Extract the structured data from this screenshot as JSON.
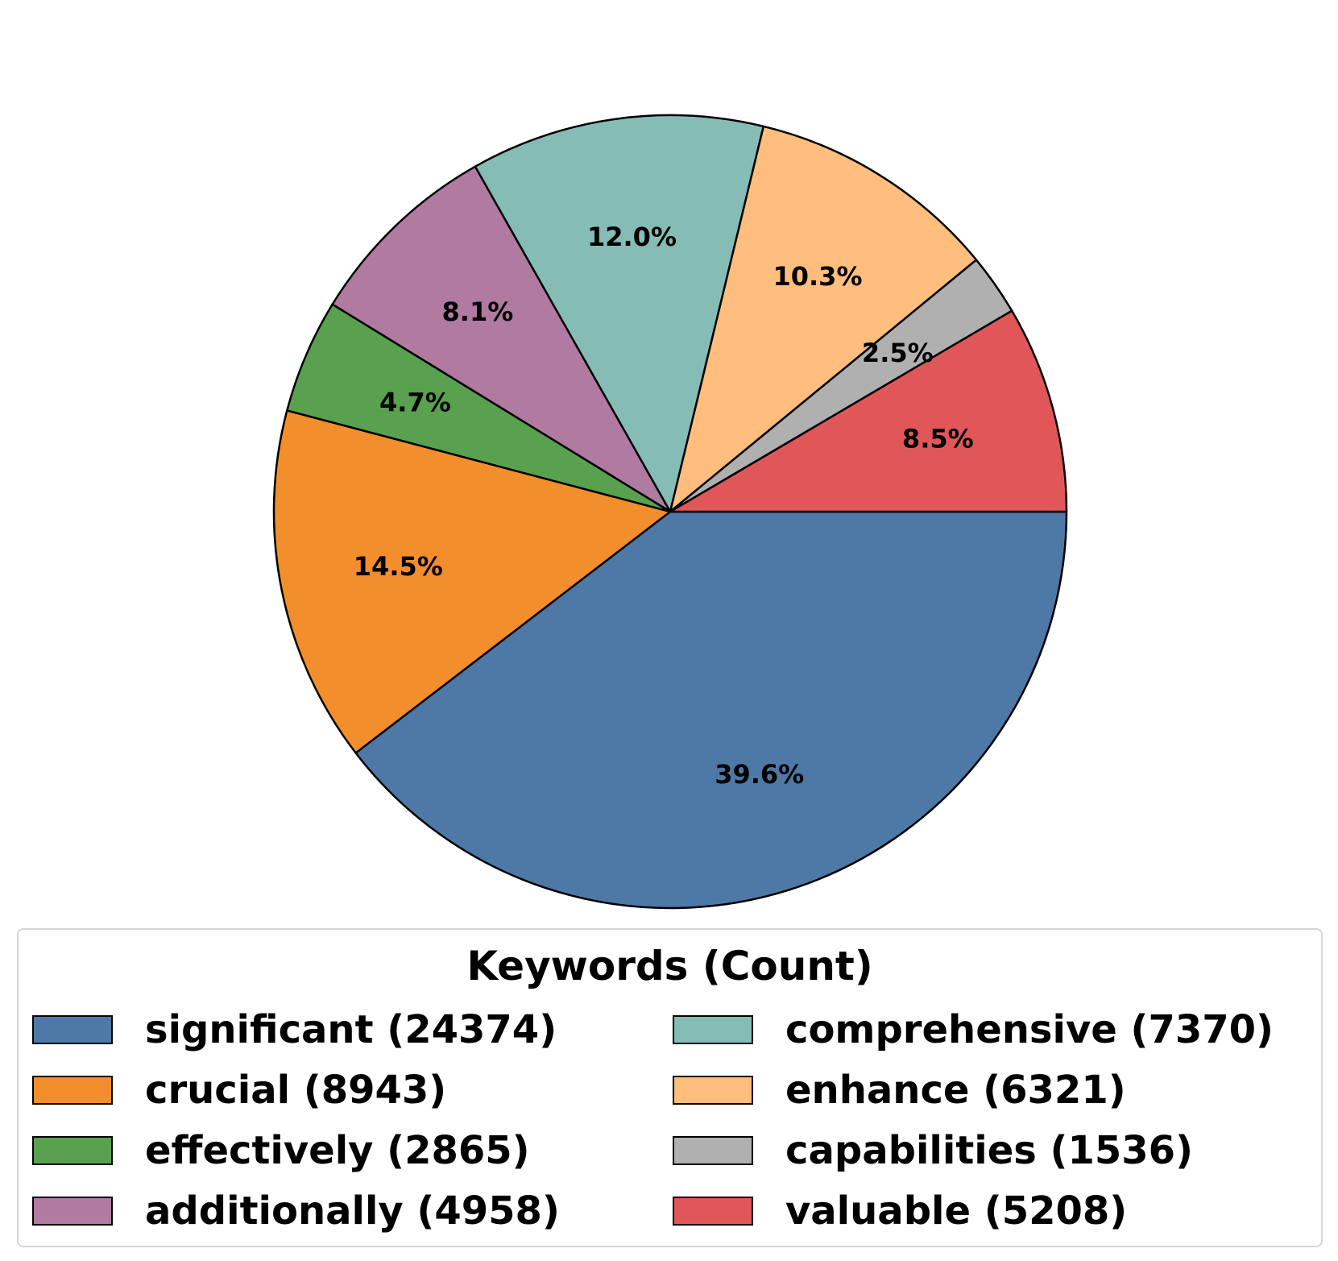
{
  "chart_data": {
    "type": "pie",
    "title": "",
    "start_angle": 0,
    "direction": "clockwise",
    "slices": [
      {
        "label": "significant",
        "count": 24374,
        "percent_label": "39.6%",
        "color": "#4e79a7"
      },
      {
        "label": "crucial",
        "count": 8943,
        "percent_label": "14.5%",
        "color": "#f28e2b"
      },
      {
        "label": "effectively",
        "count": 2865,
        "percent_label": "4.7%",
        "color": "#59a14f"
      },
      {
        "label": "additionally",
        "count": 4958,
        "percent_label": "8.1%",
        "color": "#b07aa1"
      },
      {
        "label": "comprehensive",
        "count": 7370,
        "percent_label": "12.0%",
        "color": "#86bcb6"
      },
      {
        "label": "enhance",
        "count": 6321,
        "percent_label": "10.3%",
        "color": "#ffbe7d"
      },
      {
        "label": "capabilities",
        "count": 1536,
        "percent_label": "2.5%",
        "color": "#b0b0b0"
      },
      {
        "label": "valuable",
        "count": 5208,
        "percent_label": "8.5%",
        "color": "#e15759"
      }
    ],
    "legend": {
      "title": "Keywords (Count)",
      "placement": "bottom",
      "columns": 2,
      "entries": [
        "significant (24374)",
        "crucial (8943)",
        "effectively (2865)",
        "additionally (4958)",
        "comprehensive (7370)",
        "enhance (6321)",
        "capabilities (1536)",
        "valuable (5208)"
      ]
    }
  }
}
